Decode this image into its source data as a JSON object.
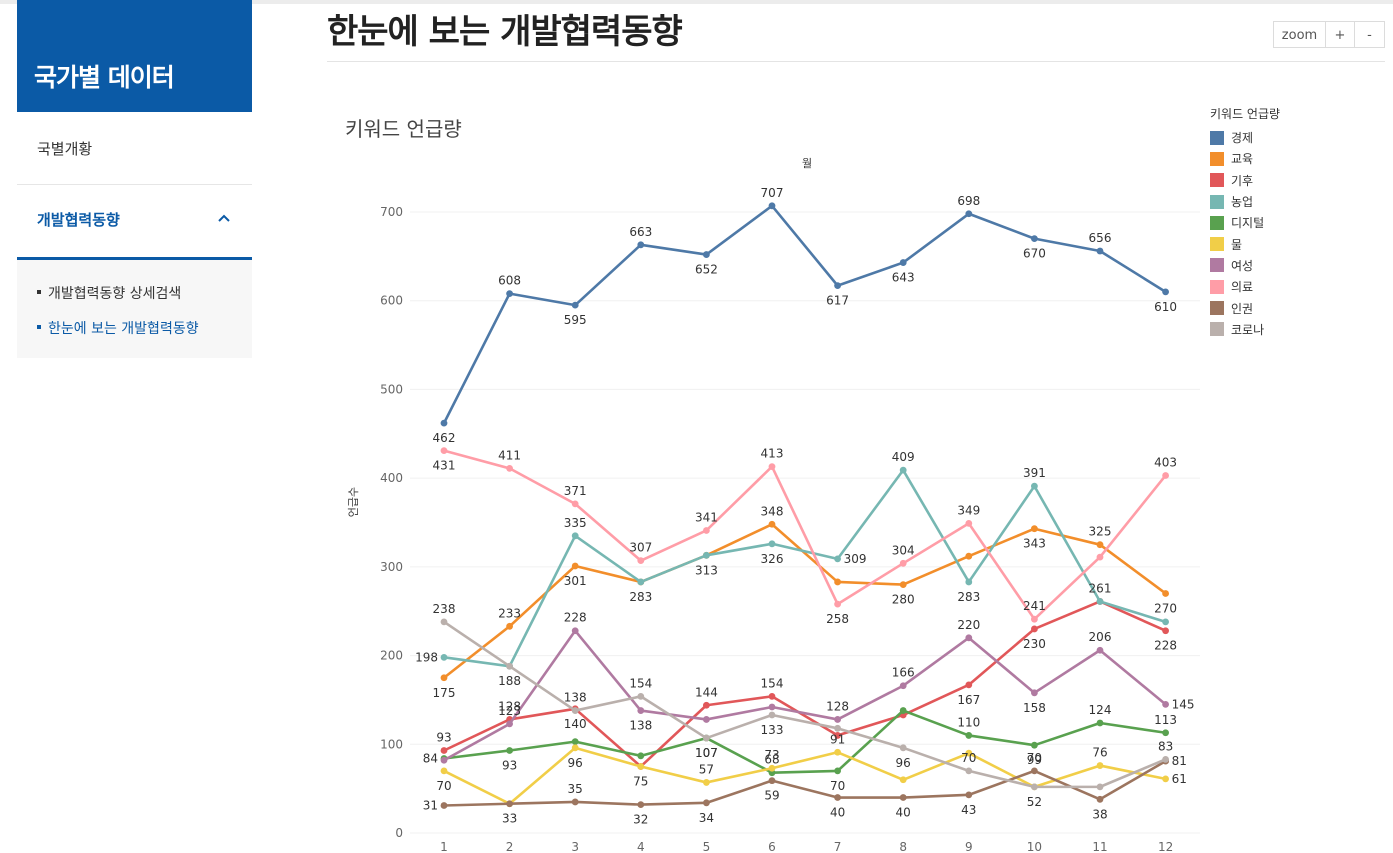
{
  "sidebar": {
    "title": "국가별 데이터",
    "items": [
      {
        "label": "국별개황"
      },
      {
        "label": "개발협력동향"
      }
    ],
    "subitems": [
      {
        "label": "개발협력동향 상세검색"
      },
      {
        "label": "한눈에 보는 개발협력동향"
      }
    ]
  },
  "page": {
    "title": "한눈에 보는 개발협력동향"
  },
  "zoom": {
    "label": "zoom",
    "plus": "+",
    "minus": "-"
  },
  "chart_data": {
    "type": "line",
    "title": "키워드 언급량",
    "xlabel": "월",
    "ylabel": "언급수",
    "ylim": [
      0,
      700
    ],
    "yticks": [
      0,
      100,
      200,
      300,
      400,
      500,
      600,
      700
    ],
    "grid": true,
    "legend_title": "키워드 언급량",
    "legend_position": "right",
    "x": [
      "1",
      "2",
      "3",
      "4",
      "5",
      "6",
      "7",
      "8",
      "9",
      "10",
      "11",
      "12"
    ],
    "series": [
      {
        "name": "경제",
        "color": "#4e79a7",
        "values": [
          462,
          608,
          595,
          663,
          652,
          707,
          617,
          643,
          698,
          670,
          656,
          610
        ],
        "labels": {
          "pos": [
            "b",
            "t",
            "b",
            "t",
            "b",
            "t",
            "b",
            "b",
            "t",
            "b",
            "t",
            "b"
          ],
          "show": [
            1,
            1,
            1,
            1,
            1,
            1,
            1,
            1,
            1,
            1,
            1,
            1
          ]
        }
      },
      {
        "name": "교육",
        "color": "#f28e2b",
        "values": [
          175,
          233,
          301,
          283,
          313,
          348,
          283,
          280,
          312,
          343,
          325,
          270
        ],
        "labels": {
          "pos": [
            "b",
            "t",
            "b",
            "b",
            "b",
            "t",
            "b",
            "b",
            "t",
            "b",
            "t",
            "b"
          ],
          "show": [
            1,
            1,
            1,
            0,
            0,
            1,
            0,
            1,
            0,
            1,
            1,
            1
          ]
        }
      },
      {
        "name": "기후",
        "color": "#e15759",
        "values": [
          93,
          128,
          140,
          75,
          144,
          154,
          110,
          133,
          167,
          230,
          261,
          228
        ],
        "labels": {
          "pos": [
            "t",
            "t",
            "b",
            "b",
            "t",
            "t",
            "b",
            "b",
            "b",
            "b",
            "t",
            "b"
          ],
          "show": [
            1,
            1,
            1,
            1,
            1,
            1,
            0,
            0,
            1,
            1,
            1,
            1
          ]
        }
      },
      {
        "name": "농업",
        "color": "#76b7b2",
        "values": [
          198,
          188,
          335,
          283,
          313,
          326,
          309,
          409,
          283,
          391,
          261,
          238
        ],
        "labels": {
          "pos": [
            "l",
            "b",
            "t",
            "b",
            "b",
            "b",
            "r",
            "t",
            "b",
            "t",
            "t",
            "t"
          ],
          "show": [
            1,
            1,
            1,
            1,
            1,
            1,
            1,
            1,
            1,
            1,
            0,
            0
          ]
        }
      },
      {
        "name": "디지털",
        "color": "#59a14f",
        "values": [
          84,
          93,
          103,
          87,
          107,
          68,
          70,
          138,
          110,
          99,
          124,
          113
        ],
        "labels": {
          "pos": [
            "l",
            "b",
            "t",
            "t",
            "b",
            "t",
            "b",
            "b",
            "t",
            "b",
            "t",
            "t"
          ],
          "show": [
            1,
            1,
            0,
            0,
            1,
            1,
            1,
            0,
            1,
            1,
            1,
            1
          ]
        }
      },
      {
        "name": "물",
        "color": "#f1ce48",
        "values": [
          70,
          33,
          96,
          75,
          57,
          73,
          91,
          60,
          90,
          52,
          76,
          61
        ],
        "labels": {
          "pos": [
            "b",
            "b",
            "b",
            "b",
            "t",
            "t",
            "t",
            "b",
            "b",
            "b",
            "t",
            "r"
          ],
          "show": [
            1,
            1,
            1,
            0,
            1,
            1,
            1,
            0,
            0,
            0,
            1,
            1
          ]
        }
      },
      {
        "name": "여성",
        "color": "#b07aa1",
        "values": [
          82,
          123,
          228,
          138,
          128,
          142,
          128,
          166,
          220,
          158,
          206,
          145
        ],
        "labels": {
          "pos": [
            "b",
            "t",
            "t",
            "b",
            "b",
            "b",
            "t",
            "t",
            "t",
            "b",
            "t",
            "r"
          ],
          "show": [
            0,
            1,
            1,
            1,
            0,
            0,
            1,
            1,
            1,
            1,
            1,
            1
          ]
        }
      },
      {
        "name": "의료",
        "color": "#ff9da7",
        "values": [
          431,
          411,
          371,
          307,
          341,
          413,
          258,
          304,
          349,
          241,
          311,
          403
        ],
        "labels": {
          "pos": [
            "b",
            "t",
            "t",
            "t",
            "t",
            "t",
            "b",
            "t",
            "t",
            "t",
            "b",
            "t"
          ],
          "show": [
            1,
            1,
            1,
            1,
            1,
            1,
            1,
            1,
            1,
            1,
            0,
            1
          ]
        }
      },
      {
        "name": "인권",
        "color": "#9c755f",
        "values": [
          31,
          33,
          35,
          32,
          34,
          59,
          40,
          40,
          43,
          70,
          38,
          81
        ],
        "labels": {
          "pos": [
            "l",
            "b",
            "t",
            "b",
            "b",
            "b",
            "b",
            "b",
            "b",
            "t",
            "b",
            "r"
          ],
          "show": [
            1,
            0,
            1,
            1,
            1,
            1,
            1,
            1,
            1,
            1,
            1,
            1
          ]
        }
      },
      {
        "name": "코로나",
        "color": "#bab0ac",
        "values": [
          238,
          188,
          138,
          154,
          107,
          133,
          118,
          96,
          70,
          52,
          52,
          83
        ],
        "labels": {
          "pos": [
            "t",
            "b",
            "t",
            "t",
            "b",
            "b",
            "b",
            "b",
            "t",
            "b",
            "b",
            "t"
          ],
          "show": [
            1,
            0,
            1,
            1,
            1,
            1,
            0,
            1,
            1,
            1,
            0,
            1
          ]
        }
      }
    ]
  }
}
